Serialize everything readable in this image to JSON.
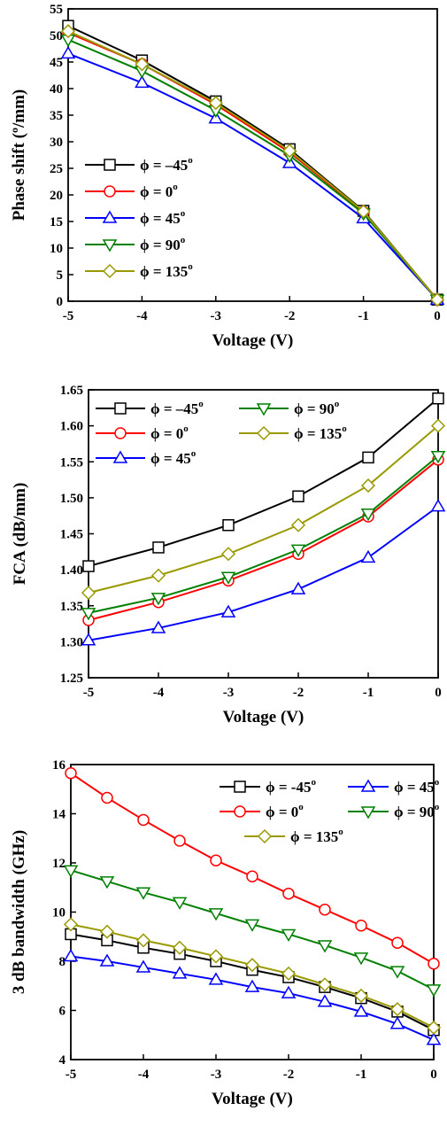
{
  "figure": {
    "colors": {
      "black": "#000000",
      "red": "#ff0000",
      "blue": "#0000ff",
      "green": "#008000",
      "olive": "#999900"
    }
  },
  "chart_data": [
    {
      "type": "line",
      "xlabel": "Voltage (V)",
      "ylabel": "Phase shift (",
      "ylabel_sup": "o",
      "ylabel_tail": "/mm)",
      "xlim": [
        -5,
        0
      ],
      "ylim": [
        0,
        55
      ],
      "xticks": [
        "-5",
        "-4",
        "-3",
        "-2",
        "-1",
        "0"
      ],
      "xtick_values": [
        -5,
        -4,
        -3,
        -2,
        -1,
        0
      ],
      "yticks": [
        "0",
        "5",
        "10",
        "15",
        "20",
        "25",
        "30",
        "35",
        "40",
        "45",
        "50",
        "55"
      ],
      "ytick_values": [
        0,
        5,
        10,
        15,
        20,
        25,
        30,
        35,
        40,
        45,
        50,
        55
      ],
      "legend_placement": "left",
      "x": [
        -5,
        -4,
        -3,
        -2,
        -1,
        0
      ],
      "series": [
        {
          "name": "ϕ = –45",
          "sup": "o",
          "color": "#000000",
          "marker": "square",
          "values": [
            51.8,
            45.3,
            37.6,
            28.6,
            17.0,
            0.3
          ]
        },
        {
          "name": "ϕ =   0",
          "sup": "o",
          "color": "#ff0000",
          "marker": "circle",
          "values": [
            50.5,
            44.6,
            37.0,
            28.0,
            16.8,
            0.3
          ]
        },
        {
          "name": "ϕ =  45",
          "sup": "o",
          "color": "#0000ff",
          "marker": "triangle-up",
          "values": [
            46.6,
            41.1,
            34.4,
            26.0,
            15.6,
            0.3
          ]
        },
        {
          "name": "ϕ =  90",
          "sup": "o",
          "color": "#008000",
          "marker": "triangle-down",
          "values": [
            49.2,
            43.3,
            35.9,
            27.4,
            16.5,
            0.3
          ]
        },
        {
          "name": "ϕ = 135",
          "sup": "o",
          "color": "#999900",
          "marker": "diamond",
          "values": [
            50.8,
            44.6,
            37.3,
            28.3,
            16.9,
            0.3
          ]
        }
      ]
    },
    {
      "type": "line",
      "xlabel": "Voltage (V)",
      "ylabel": "FCA (dB/mm)",
      "xlim": [
        -5,
        0
      ],
      "ylim": [
        1.25,
        1.65
      ],
      "xticks": [
        "-5",
        "-4",
        "-3",
        "-2",
        "-1",
        "0"
      ],
      "xtick_values": [
        -5,
        -4,
        -3,
        -2,
        -1,
        0
      ],
      "yticks": [
        "1.25",
        "1.30",
        "1.35",
        "1.40",
        "1.45",
        "1.50",
        "1.55",
        "1.60",
        "1.65"
      ],
      "ytick_values": [
        1.25,
        1.3,
        1.35,
        1.4,
        1.45,
        1.5,
        1.55,
        1.6,
        1.65
      ],
      "legend_placement": "top",
      "x": [
        -5,
        -4,
        -3,
        -2,
        -1,
        0
      ],
      "series": [
        {
          "name": "ϕ = –45",
          "sup": "o",
          "color": "#000000",
          "marker": "square",
          "values": [
            1.405,
            1.431,
            1.462,
            1.502,
            1.556,
            1.638
          ]
        },
        {
          "name": "ϕ =   0",
          "sup": "o",
          "color": "#ff0000",
          "marker": "circle",
          "values": [
            1.33,
            1.355,
            1.385,
            1.422,
            1.474,
            1.553
          ]
        },
        {
          "name": "ϕ =  45",
          "sup": "o",
          "color": "#0000ff",
          "marker": "triangle-up",
          "values": [
            1.302,
            1.319,
            1.341,
            1.373,
            1.417,
            1.488
          ]
        },
        {
          "name": "ϕ =  90",
          "sup": "o",
          "color": "#008000",
          "marker": "triangle-down",
          "values": [
            1.34,
            1.361,
            1.39,
            1.428,
            1.478,
            1.558
          ]
        },
        {
          "name": "ϕ = 135",
          "sup": "o",
          "color": "#999900",
          "marker": "diamond",
          "values": [
            1.368,
            1.392,
            1.422,
            1.462,
            1.517,
            1.6
          ]
        }
      ]
    },
    {
      "type": "line",
      "xlabel": "Voltage (V)",
      "ylabel": "3 dB bandwidth (GHz)",
      "xlim": [
        -5,
        0
      ],
      "ylim": [
        4,
        16
      ],
      "xticks": [
        "-5",
        "-4",
        "-3",
        "-2",
        "-1",
        "0"
      ],
      "xtick_values": [
        -5,
        -4,
        -3,
        -2,
        -1,
        0
      ],
      "yticks": [
        "4",
        "6",
        "8",
        "10",
        "12",
        "14",
        "16"
      ],
      "ytick_values": [
        4,
        6,
        8,
        10,
        12,
        14,
        16
      ],
      "legend_placement": "top-right",
      "x": [
        -5,
        -4.5,
        -4,
        -3.5,
        -3,
        -2.5,
        -2,
        -1.5,
        -1,
        -0.5,
        0
      ],
      "series": [
        {
          "name": "ϕ = -45",
          "sup": "o",
          "color": "#000000",
          "marker": "square",
          "values": [
            9.1,
            8.85,
            8.55,
            8.3,
            8.0,
            7.65,
            7.35,
            6.95,
            6.5,
            5.95,
            5.2
          ]
        },
        {
          "name": "ϕ =  45",
          "sup": "o",
          "color": "#0000ff",
          "marker": "triangle-up",
          "values": [
            8.2,
            8.0,
            7.75,
            7.5,
            7.25,
            6.95,
            6.7,
            6.35,
            5.95,
            5.45,
            4.8
          ]
        },
        {
          "name": "ϕ =  0",
          "sup": "o",
          "color": "#ff0000",
          "marker": "circle",
          "values": [
            15.65,
            14.65,
            13.75,
            12.9,
            12.1,
            11.45,
            10.75,
            10.1,
            9.45,
            8.75,
            7.9
          ]
        },
        {
          "name": "ϕ =  90",
          "sup": "o",
          "color": "#008000",
          "marker": "triangle-down",
          "values": [
            11.7,
            11.25,
            10.8,
            10.4,
            9.95,
            9.5,
            9.1,
            8.65,
            8.15,
            7.6,
            6.85
          ]
        },
        {
          "name": "ϕ = 135",
          "sup": "o",
          "color": "#999900",
          "marker": "diamond",
          "values": [
            9.5,
            9.2,
            8.85,
            8.55,
            8.2,
            7.85,
            7.5,
            7.05,
            6.6,
            6.05,
            5.3
          ]
        }
      ]
    }
  ]
}
